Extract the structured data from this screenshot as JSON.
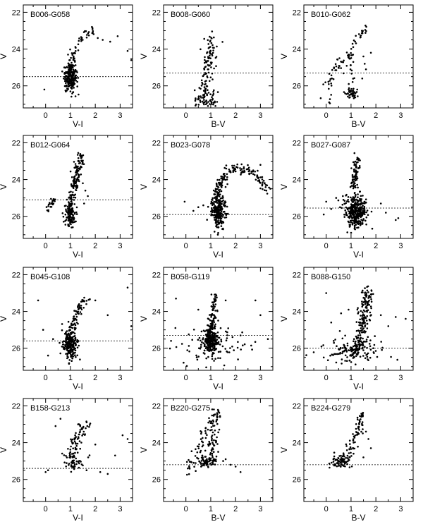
{
  "chart_data": [
    {
      "type": "scatter",
      "title": "B006-G058",
      "xlabel": "V-I",
      "ylabel": "V",
      "xlim": [
        -0.9,
        3.5
      ],
      "ylim": [
        27.2,
        21.6
      ],
      "xticks": [
        0,
        1,
        2,
        3
      ],
      "yticks": [
        22,
        24,
        26
      ],
      "ref_line_y": 25.5,
      "clusters": [
        {
          "kind": "blob",
          "cx": 1.0,
          "cy": 25.55,
          "sx": 0.12,
          "sy": 0.38,
          "n": 200
        },
        {
          "kind": "track",
          "points": [
            [
              0.85,
              26.0
            ],
            [
              0.95,
              25.3
            ],
            [
              1.05,
              24.7
            ],
            [
              1.15,
              24.3
            ],
            [
              1.3,
              23.8
            ],
            [
              1.5,
              23.3
            ],
            [
              1.8,
              22.9
            ]
          ],
          "n": 70,
          "jx": 0.1,
          "jy": 0.12
        },
        {
          "kind": "sparse",
          "x": [
            -0.05,
            2.1,
            2.3,
            2.9,
            3.3,
            3.45,
            1.9,
            2.6
          ],
          "y": [
            26.2,
            23.4,
            23.5,
            23.3,
            24.1,
            24.6,
            23.1,
            23.6
          ]
        }
      ]
    },
    {
      "type": "scatter",
      "title": "B008-G060",
      "xlabel": "B-V",
      "ylabel": "V",
      "xlim": [
        -0.9,
        3.5
      ],
      "ylim": [
        27.2,
        21.6
      ],
      "xticks": [
        0,
        1,
        2,
        3
      ],
      "yticks": [
        22,
        24,
        26
      ],
      "ref_line_y": 25.3,
      "clusters": [
        {
          "kind": "track",
          "points": [
            [
              0.55,
              27.1
            ],
            [
              0.65,
              26.5
            ],
            [
              0.75,
              25.8
            ],
            [
              0.85,
              25.2
            ],
            [
              0.9,
              24.6
            ],
            [
              1.0,
              24.0
            ],
            [
              1.05,
              23.2
            ]
          ],
          "n": 110,
          "jx": 0.12,
          "jy": 0.15
        },
        {
          "kind": "blob",
          "cx": 0.9,
          "cy": 26.6,
          "sx": 0.25,
          "sy": 0.35,
          "n": 50
        }
      ]
    },
    {
      "type": "scatter",
      "title": "B010-G062",
      "xlabel": "B-V",
      "ylabel": "V",
      "xlim": [
        -0.9,
        3.5
      ],
      "ylim": [
        27.2,
        21.6
      ],
      "xticks": [
        0,
        1,
        2,
        3
      ],
      "yticks": [
        22,
        24,
        26
      ],
      "ref_line_y": 25.3,
      "clusters": [
        {
          "kind": "blob",
          "cx": 1.0,
          "cy": 26.45,
          "sx": 0.1,
          "sy": 0.15,
          "n": 40
        },
        {
          "kind": "track",
          "points": [
            [
              1.05,
              26.0
            ],
            [
              1.0,
              25.2
            ],
            [
              0.95,
              24.5
            ],
            [
              1.0,
              24.0
            ],
            [
              1.2,
              23.5
            ],
            [
              1.45,
              23.1
            ],
            [
              1.6,
              22.7
            ]
          ],
          "n": 45,
          "jx": 0.08,
          "jy": 0.1
        },
        {
          "kind": "track",
          "points": [
            [
              0.05,
              26.9
            ],
            [
              0.1,
              26.2
            ],
            [
              0.2,
              25.6
            ],
            [
              0.4,
              25.2
            ],
            [
              0.6,
              24.7
            ],
            [
              0.75,
              24.3
            ]
          ],
          "n": 40,
          "jx": 0.12,
          "jy": 0.15
        },
        {
          "kind": "sparse",
          "x": [
            1.5,
            1.55,
            1.6,
            1.45,
            1.25,
            1.8
          ],
          "y": [
            24.4,
            24.8,
            25.1,
            25.6,
            26.2,
            24.2
          ]
        }
      ]
    },
    {
      "type": "scatter",
      "title": "B012-G064",
      "xlabel": "V-I",
      "ylabel": "V",
      "xlim": [
        -0.9,
        3.5
      ],
      "ylim": [
        27.2,
        21.6
      ],
      "xticks": [
        0,
        1,
        2,
        3
      ],
      "yticks": [
        22,
        24,
        26
      ],
      "ref_line_y": 25.1,
      "clusters": [
        {
          "kind": "track",
          "points": [
            [
              0.95,
              26.3
            ],
            [
              1.0,
              25.6
            ],
            [
              1.05,
              25.0
            ],
            [
              1.15,
              24.4
            ],
            [
              1.25,
              23.8
            ],
            [
              1.35,
              23.2
            ],
            [
              1.45,
              22.6
            ]
          ],
          "n": 190,
          "jx": 0.08,
          "jy": 0.1
        },
        {
          "kind": "blob",
          "cx": 1.0,
          "cy": 26.0,
          "sx": 0.12,
          "sy": 0.3,
          "n": 80
        },
        {
          "kind": "track",
          "points": [
            [
              0.0,
              25.9
            ],
            [
              0.1,
              25.6
            ],
            [
              0.25,
              25.3
            ],
            [
              0.35,
              25.05
            ]
          ],
          "n": 25,
          "jx": 0.06,
          "jy": 0.1
        },
        {
          "kind": "sparse",
          "x": [
            1.5,
            1.6,
            1.55,
            1.7
          ],
          "y": [
            24.2,
            24.6,
            25.3,
            24.9
          ]
        }
      ]
    },
    {
      "type": "scatter",
      "title": "B023-G078",
      "xlabel": "V-I",
      "ylabel": "V",
      "xlim": [
        -0.9,
        3.5
      ],
      "ylim": [
        27.2,
        21.6
      ],
      "xticks": [
        0,
        1,
        2,
        3
      ],
      "yticks": [
        22,
        24,
        26
      ],
      "ref_line_y": 25.9,
      "clusters": [
        {
          "kind": "blob",
          "cx": 1.3,
          "cy": 25.7,
          "sx": 0.15,
          "sy": 0.45,
          "n": 220
        },
        {
          "kind": "track",
          "points": [
            [
              1.15,
              25.1
            ],
            [
              1.25,
              24.6
            ],
            [
              1.4,
              24.1
            ],
            [
              1.6,
              23.7
            ],
            [
              1.9,
              23.45
            ],
            [
              2.3,
              23.4
            ],
            [
              2.7,
              23.6
            ],
            [
              3.0,
              24.0
            ],
            [
              3.25,
              24.6
            ]
          ],
          "n": 150,
          "jx": 0.1,
          "jy": 0.15
        },
        {
          "kind": "sparse",
          "x": [
            -0.05,
            0.3,
            0.5,
            0.7,
            3.0,
            3.4,
            1.3,
            1.5
          ],
          "y": [
            25.2,
            25.7,
            25.5,
            25.4,
            23.2,
            24.5,
            26.9,
            26.7
          ]
        }
      ]
    },
    {
      "type": "scatter",
      "title": "B027-G087",
      "xlabel": "V-I",
      "ylabel": "V",
      "xlim": [
        -0.9,
        3.5
      ],
      "ylim": [
        27.2,
        21.6
      ],
      "xticks": [
        0,
        1,
        2,
        3
      ],
      "yticks": [
        22,
        24,
        26
      ],
      "ref_line_y": 25.55,
      "clusters": [
        {
          "kind": "blob",
          "cx": 1.2,
          "cy": 25.7,
          "sx": 0.22,
          "sy": 0.45,
          "n": 330
        },
        {
          "kind": "track",
          "points": [
            [
              1.1,
              24.6
            ],
            [
              1.15,
              24.0
            ],
            [
              1.2,
              23.4
            ],
            [
              1.25,
              22.8
            ]
          ],
          "n": 70,
          "jx": 0.07,
          "jy": 0.1
        },
        {
          "kind": "sparse",
          "x": [
            0.0,
            0.2,
            -0.1,
            0.4,
            2.8,
            2.9,
            2.2,
            2.4
          ],
          "y": [
            25.2,
            25.6,
            25.9,
            25.0,
            26.2,
            26.1,
            25.3,
            25.8
          ]
        }
      ]
    },
    {
      "type": "scatter",
      "title": "B045-G108",
      "xlabel": "V-I",
      "ylabel": "V",
      "xlim": [
        -0.9,
        3.5
      ],
      "ylim": [
        27.2,
        21.6
      ],
      "xticks": [
        0,
        1,
        2,
        3
      ],
      "yticks": [
        22,
        24,
        26
      ],
      "ref_line_y": 25.6,
      "clusters": [
        {
          "kind": "blob",
          "cx": 1.0,
          "cy": 25.75,
          "sx": 0.14,
          "sy": 0.4,
          "n": 220
        },
        {
          "kind": "track",
          "points": [
            [
              1.05,
              25.0
            ],
            [
              1.15,
              24.5
            ],
            [
              1.3,
              24.0
            ],
            [
              1.5,
              23.6
            ],
            [
              1.75,
              23.3
            ]
          ],
          "n": 60,
          "jx": 0.1,
          "jy": 0.12
        },
        {
          "kind": "sparse",
          "x": [
            -0.3,
            -0.1,
            0.3,
            2.0,
            2.5,
            3.3,
            3.45,
            0.1
          ],
          "y": [
            23.4,
            25.0,
            25.5,
            23.4,
            24.2,
            22.7,
            24.8,
            26.4
          ]
        }
      ]
    },
    {
      "type": "scatter",
      "title": "B058-G119",
      "xlabel": "V-I",
      "ylabel": "V",
      "xlim": [
        -0.9,
        3.5
      ],
      "ylim": [
        27.2,
        21.6
      ],
      "xticks": [
        0,
        1,
        2,
        3
      ],
      "yticks": [
        22,
        24,
        26
      ],
      "ref_line_y": 25.3,
      "clusters": [
        {
          "kind": "blob",
          "cx": 1.0,
          "cy": 25.5,
          "sx": 0.15,
          "sy": 0.4,
          "n": 230
        },
        {
          "kind": "track",
          "points": [
            [
              1.05,
              24.8
            ],
            [
              1.1,
              24.2
            ],
            [
              1.15,
              23.6
            ],
            [
              1.2,
              23.0
            ]
          ],
          "n": 60,
          "jx": 0.06,
          "jy": 0.1
        },
        {
          "kind": "blob",
          "cx": 1.0,
          "cy": 25.9,
          "sx": 0.9,
          "sy": 0.5,
          "n": 70
        },
        {
          "kind": "sparse",
          "x": [
            -0.4,
            -0.6,
            2.8,
            3.0,
            3.3,
            2.2,
            1.6,
            0.5
          ],
          "y": [
            23.3,
            25.6,
            23.4,
            24.2,
            25.5,
            25.3,
            23.4,
            23.9
          ]
        }
      ]
    },
    {
      "type": "scatter",
      "title": "B088-G150",
      "xlabel": "V-I",
      "ylabel": "V",
      "xlim": [
        -0.9,
        3.5
      ],
      "ylim": [
        27.2,
        21.6
      ],
      "xticks": [
        0,
        1,
        2,
        3
      ],
      "yticks": [
        22,
        24,
        26
      ],
      "ref_line_y": 26.0,
      "clusters": [
        {
          "kind": "track",
          "points": [
            [
              1.2,
              26.4
            ],
            [
              1.3,
              25.8
            ],
            [
              1.4,
              25.2
            ],
            [
              1.5,
              24.6
            ],
            [
              1.55,
              24.0
            ],
            [
              1.6,
              23.4
            ],
            [
              1.65,
              22.9
            ]
          ],
          "n": 180,
          "jx": 0.13,
          "jy": 0.15
        },
        {
          "kind": "blob",
          "cx": 1.1,
          "cy": 26.1,
          "sx": 0.55,
          "sy": 0.35,
          "n": 130
        },
        {
          "kind": "sparse",
          "x": [
            0.0,
            0.2,
            0.3,
            2.2,
            2.5,
            2.8,
            3.2,
            0.6,
            0.9,
            -0.1
          ],
          "y": [
            23.0,
            24.6,
            25.6,
            24.2,
            24.8,
            24.3,
            24.4,
            24.1,
            23.9,
            26.5
          ]
        }
      ]
    },
    {
      "type": "scatter",
      "title": "B158-G213",
      "xlabel": "V-I",
      "ylabel": "V",
      "xlim": [
        -0.9,
        3.5
      ],
      "ylim": [
        27.2,
        21.6
      ],
      "xticks": [
        0,
        1,
        2,
        3
      ],
      "yticks": [
        22,
        24,
        26
      ],
      "ref_line_y": 25.4,
      "clusters": [
        {
          "kind": "track",
          "points": [
            [
              1.1,
              25.4
            ],
            [
              1.15,
              24.8
            ],
            [
              1.2,
              24.2
            ],
            [
              1.3,
              23.7
            ],
            [
              1.45,
              23.3
            ],
            [
              1.6,
              22.9
            ]
          ],
          "n": 80,
          "jx": 0.12,
          "jy": 0.12
        },
        {
          "kind": "blob",
          "cx": 1.2,
          "cy": 25.0,
          "sx": 0.3,
          "sy": 0.3,
          "n": 40
        },
        {
          "kind": "sparse",
          "x": [
            0.0,
            0.1,
            0.4,
            0.6,
            2.2,
            2.5,
            2.8,
            3.1,
            3.3,
            2.0
          ],
          "y": [
            25.6,
            25.5,
            23.1,
            22.7,
            25.6,
            25.7,
            24.7,
            23.6,
            23.8,
            24.1
          ]
        }
      ]
    },
    {
      "type": "scatter",
      "title": "B220-G275",
      "xlabel": "B-V",
      "ylabel": "V",
      "xlim": [
        -0.9,
        3.5
      ],
      "ylim": [
        27.2,
        21.6
      ],
      "xticks": [
        0,
        1,
        2,
        3
      ],
      "yticks": [
        22,
        24,
        26
      ],
      "ref_line_y": 25.2,
      "clusters": [
        {
          "kind": "blob",
          "cx": 0.9,
          "cy": 25.05,
          "sx": 0.2,
          "sy": 0.15,
          "n": 70
        },
        {
          "kind": "track",
          "points": [
            [
              1.0,
              24.6
            ],
            [
              1.05,
              24.0
            ],
            [
              1.1,
              23.4
            ],
            [
              1.15,
              22.8
            ],
            [
              1.2,
              22.3
            ]
          ],
          "n": 70,
          "jx": 0.1,
          "jy": 0.12
        },
        {
          "kind": "track",
          "points": [
            [
              0.1,
              25.5
            ],
            [
              0.3,
              25.1
            ],
            [
              0.5,
              24.5
            ],
            [
              0.7,
              23.7
            ],
            [
              0.9,
              22.9
            ]
          ],
          "n": 45,
          "jx": 0.08,
          "jy": 0.2
        },
        {
          "kind": "sparse",
          "x": [
            1.3,
            1.6,
            1.8,
            2.0,
            1.5,
            2.2
          ],
          "y": [
            24.5,
            24.9,
            25.2,
            25.3,
            25.0,
            25.6
          ]
        }
      ]
    },
    {
      "type": "scatter",
      "title": "B224-G279",
      "xlabel": "B-V",
      "ylabel": "V",
      "xlim": [
        -0.9,
        3.5
      ],
      "ylim": [
        27.2,
        21.6
      ],
      "xticks": [
        0,
        1,
        2,
        3
      ],
      "yticks": [
        22,
        24,
        26
      ],
      "ref_line_y": 25.2,
      "clusters": [
        {
          "kind": "blob",
          "cx": 0.55,
          "cy": 25.0,
          "sx": 0.22,
          "sy": 0.18,
          "n": 70
        },
        {
          "kind": "track",
          "points": [
            [
              0.7,
              24.8
            ],
            [
              0.95,
              24.3
            ],
            [
              1.15,
              23.8
            ],
            [
              1.3,
              23.3
            ],
            [
              1.4,
              22.8
            ],
            [
              1.45,
              22.3
            ]
          ],
          "n": 70,
          "jx": 0.1,
          "jy": 0.12
        },
        {
          "kind": "sparse",
          "x": [
            1.6,
            1.7,
            1.8,
            1.5,
            1.1,
            0.9
          ],
          "y": [
            23.4,
            23.8,
            24.3,
            24.8,
            24.6,
            24.9
          ]
        }
      ]
    }
  ]
}
